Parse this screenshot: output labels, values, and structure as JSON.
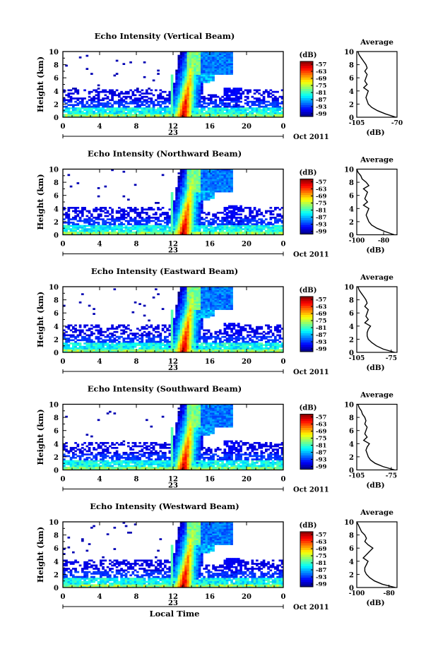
{
  "chart_data": [
    {
      "type": "heatmap",
      "title": "Echo Intensity (Vertical Beam)",
      "ylabel": "Height (km)",
      "xticks": [
        "0",
        "4",
        "8",
        "12",
        "16",
        "20",
        "0"
      ],
      "yticks": [
        "0",
        "2",
        "4",
        "6",
        "8",
        "10"
      ],
      "xlim": [
        0,
        24
      ],
      "ylim": [
        0,
        10
      ],
      "date_day": "23",
      "date_label": "Oct 2011",
      "colorbar": {
        "unit": "(dB)",
        "ticks": [
          "-57",
          "-63",
          "-69",
          "-75",
          "-81",
          "-87",
          "-93",
          "-99"
        ]
      },
      "profile": {
        "title": "Average",
        "xlabel": "(dB)",
        "xticks": [
          "-105",
          "-70"
        ],
        "xlim": [
          -105,
          -70
        ],
        "heights": [
          0,
          0.5,
          1,
          1.5,
          2,
          2.5,
          3,
          3.5,
          4,
          4.5,
          5,
          5.5,
          6,
          6.5,
          7,
          7.5,
          8,
          8.5,
          9,
          9.5,
          10
        ],
        "values": [
          -71,
          -80,
          -87,
          -92,
          -95,
          -96,
          -97,
          -96,
          -95,
          -99,
          -96,
          -98,
          -97,
          -96,
          -98,
          -96,
          -97,
          -99,
          -101,
          -103,
          -104
        ]
      }
    },
    {
      "type": "heatmap",
      "title": "Echo Intensity (Northward Beam)",
      "ylabel": "Height (km)",
      "xticks": [
        "0",
        "4",
        "8",
        "12",
        "16",
        "20",
        "0"
      ],
      "yticks": [
        "0",
        "2",
        "4",
        "6",
        "8",
        "10"
      ],
      "xlim": [
        0,
        24
      ],
      "ylim": [
        0,
        10
      ],
      "date_day": "23",
      "date_label": "Oct 2011",
      "colorbar": {
        "unit": "(dB)",
        "ticks": [
          "-57",
          "-63",
          "-69",
          "-75",
          "-81",
          "-87",
          "-93",
          "-99"
        ]
      },
      "profile": {
        "title": "Average",
        "xlabel": "(dB)",
        "xticks": [
          "-100",
          "-80"
        ],
        "xlim": [
          -100,
          -70
        ],
        "heights": [
          0,
          0.5,
          1,
          1.5,
          2,
          2.5,
          3,
          3.5,
          4,
          4.5,
          5,
          5.5,
          6,
          6.5,
          7,
          7.5,
          8,
          8.5,
          9,
          9.5,
          10
        ],
        "values": [
          -72,
          -79,
          -85,
          -89,
          -91,
          -92,
          -93,
          -92,
          -91,
          -95,
          -92,
          -94,
          -93,
          -92,
          -95,
          -91,
          -93,
          -96,
          -97,
          -99,
          -100
        ]
      }
    },
    {
      "type": "heatmap",
      "title": "Echo Intensity (Eastward Beam)",
      "ylabel": "Height (km)",
      "xticks": [
        "0",
        "4",
        "8",
        "12",
        "16",
        "20",
        "0"
      ],
      "yticks": [
        "0",
        "2",
        "4",
        "6",
        "8",
        "10"
      ],
      "xlim": [
        0,
        24
      ],
      "ylim": [
        0,
        10
      ],
      "date_day": "23",
      "date_label": "Oct 2011",
      "colorbar": {
        "unit": "(dB)",
        "ticks": [
          "-57",
          "-63",
          "-69",
          "-75",
          "-81",
          "-87",
          "-93",
          "-99"
        ]
      },
      "profile": {
        "title": "Average",
        "xlabel": "(dB)",
        "xticks": [
          "-105",
          "-75"
        ],
        "xlim": [
          -105,
          -70
        ],
        "heights": [
          0,
          0.5,
          1,
          1.5,
          2,
          2.5,
          3,
          3.5,
          4,
          4.5,
          5,
          5.5,
          6,
          6.5,
          7,
          7.5,
          8,
          8.5,
          9,
          9.5,
          10
        ],
        "values": [
          -72,
          -82,
          -88,
          -92,
          -95,
          -96,
          -96,
          -95,
          -93,
          -98,
          -95,
          -97,
          -96,
          -95,
          -98,
          -96,
          -97,
          -99,
          -101,
          -103,
          -104
        ]
      }
    },
    {
      "type": "heatmap",
      "title": "Echo Intensity (Southward Beam)",
      "ylabel": "Height (km)",
      "xticks": [
        "0",
        "4",
        "8",
        "12",
        "16",
        "20",
        "0"
      ],
      "yticks": [
        "0",
        "2",
        "4",
        "6",
        "8",
        "10"
      ],
      "xlim": [
        0,
        24
      ],
      "ylim": [
        0,
        10
      ],
      "date_day": "23",
      "date_label": "Oct 2011",
      "colorbar": {
        "unit": "(dB)",
        "ticks": [
          "-57",
          "-63",
          "-69",
          "-75",
          "-81",
          "-87",
          "-93",
          "-99"
        ]
      },
      "profile": {
        "title": "Average",
        "xlabel": "(dB)",
        "xticks": [
          "-105",
          "-75"
        ],
        "xlim": [
          -105,
          -70
        ],
        "heights": [
          0,
          0.5,
          1,
          1.5,
          2,
          2.5,
          3,
          3.5,
          4,
          4.5,
          5,
          5.5,
          6,
          6.5,
          7,
          7.5,
          8,
          8.5,
          9,
          9.5,
          10
        ],
        "values": [
          -72,
          -82,
          -89,
          -93,
          -95,
          -96,
          -97,
          -96,
          -94,
          -99,
          -96,
          -98,
          -97,
          -96,
          -98,
          -97,
          -98,
          -100,
          -101,
          -103,
          -104
        ]
      }
    },
    {
      "type": "heatmap",
      "title": "Echo Intensity (Westward Beam)",
      "ylabel": "Height (km)",
      "xlabel": "Local Time",
      "xticks": [
        "0",
        "4",
        "8",
        "12",
        "16",
        "20",
        "0"
      ],
      "yticks": [
        "0",
        "2",
        "4",
        "6",
        "8",
        "10"
      ],
      "xlim": [
        0,
        24
      ],
      "ylim": [
        0,
        10
      ],
      "date_day": "23",
      "date_label": "Oct 2011",
      "colorbar": {
        "unit": "(dB)",
        "ticks": [
          "-57",
          "-63",
          "-69",
          "-75",
          "-81",
          "-87",
          "-93",
          "-99"
        ]
      },
      "profile": {
        "title": "Average",
        "xlabel": "(dB)",
        "xticks": [
          "-100",
          "-80"
        ],
        "xlim": [
          -100,
          -75
        ],
        "heights": [
          0,
          0.5,
          1,
          1.5,
          2,
          2.5,
          3,
          3.5,
          4,
          4.5,
          5,
          5.5,
          6,
          6.5,
          7,
          7.5,
          8,
          8.5,
          9,
          9.5,
          10
        ],
        "values": [
          -76,
          -84,
          -89,
          -92,
          -94,
          -95,
          -95,
          -94,
          -93,
          -96,
          -94,
          -92,
          -90,
          -93,
          -95,
          -94,
          -95,
          -97,
          -98,
          -99,
          -100
        ]
      }
    }
  ]
}
